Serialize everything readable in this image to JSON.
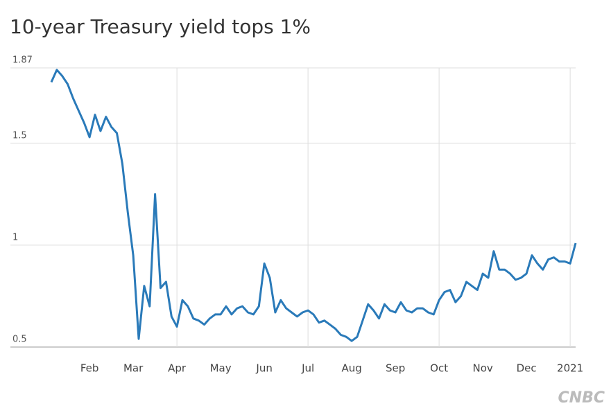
{
  "chart_data": {
    "type": "line",
    "title": "10-year Treasury yield tops 1%",
    "categories": [
      null,
      null,
      null,
      null,
      null,
      null,
      null,
      "Feb",
      null,
      null,
      null,
      null,
      null,
      null,
      null,
      "Mar",
      null,
      null,
      null,
      null,
      null,
      null,
      null,
      "Apr",
      null,
      null,
      null,
      null,
      null,
      null,
      null,
      "May",
      null,
      null,
      null,
      null,
      null,
      null,
      null,
      "Jun",
      null,
      null,
      null,
      null,
      null,
      null,
      null,
      "Jul",
      null,
      null,
      null,
      null,
      null,
      null,
      null,
      "Aug",
      null,
      null,
      null,
      null,
      null,
      null,
      null,
      "Sep",
      null,
      null,
      null,
      null,
      null,
      null,
      null,
      "Oct",
      null,
      null,
      null,
      null,
      null,
      null,
      null,
      "Nov",
      null,
      null,
      null,
      null,
      null,
      null,
      null,
      "Dec",
      null,
      null,
      null,
      null,
      null,
      null,
      null,
      "2021",
      null
    ],
    "series": [
      {
        "color": "#2a7ab9",
        "values": [
          1.8,
          1.86,
          1.83,
          1.79,
          1.72,
          1.66,
          1.6,
          1.53,
          1.64,
          1.56,
          1.63,
          1.58,
          1.55,
          1.4,
          1.16,
          0.95,
          0.54,
          0.8,
          0.7,
          1.25,
          0.79,
          0.82,
          0.65,
          0.6,
          0.73,
          0.7,
          0.64,
          0.63,
          0.61,
          0.64,
          0.66,
          0.66,
          0.7,
          0.66,
          0.69,
          0.7,
          0.67,
          0.66,
          0.7,
          0.91,
          0.84,
          0.67,
          0.73,
          0.69,
          0.67,
          0.65,
          0.67,
          0.68,
          0.66,
          0.62,
          0.63,
          0.61,
          0.59,
          0.56,
          0.55,
          0.53,
          0.55,
          0.63,
          0.71,
          0.68,
          0.64,
          0.71,
          0.68,
          0.67,
          0.72,
          0.68,
          0.67,
          0.69,
          0.69,
          0.67,
          0.66,
          0.73,
          0.77,
          0.78,
          0.72,
          0.75,
          0.82,
          0.8,
          0.78,
          0.86,
          0.84,
          0.97,
          0.88,
          0.88,
          0.86,
          0.83,
          0.84,
          0.86,
          0.95,
          0.91,
          0.88,
          0.93,
          0.94,
          0.92,
          0.92,
          0.91,
          1.01
        ]
      }
    ],
    "ylim": [
      0.5,
      1.87
    ],
    "yticks": [
      0.5,
      1,
      1.5,
      1.87
    ],
    "grid": true
  },
  "logo": "CNBC"
}
